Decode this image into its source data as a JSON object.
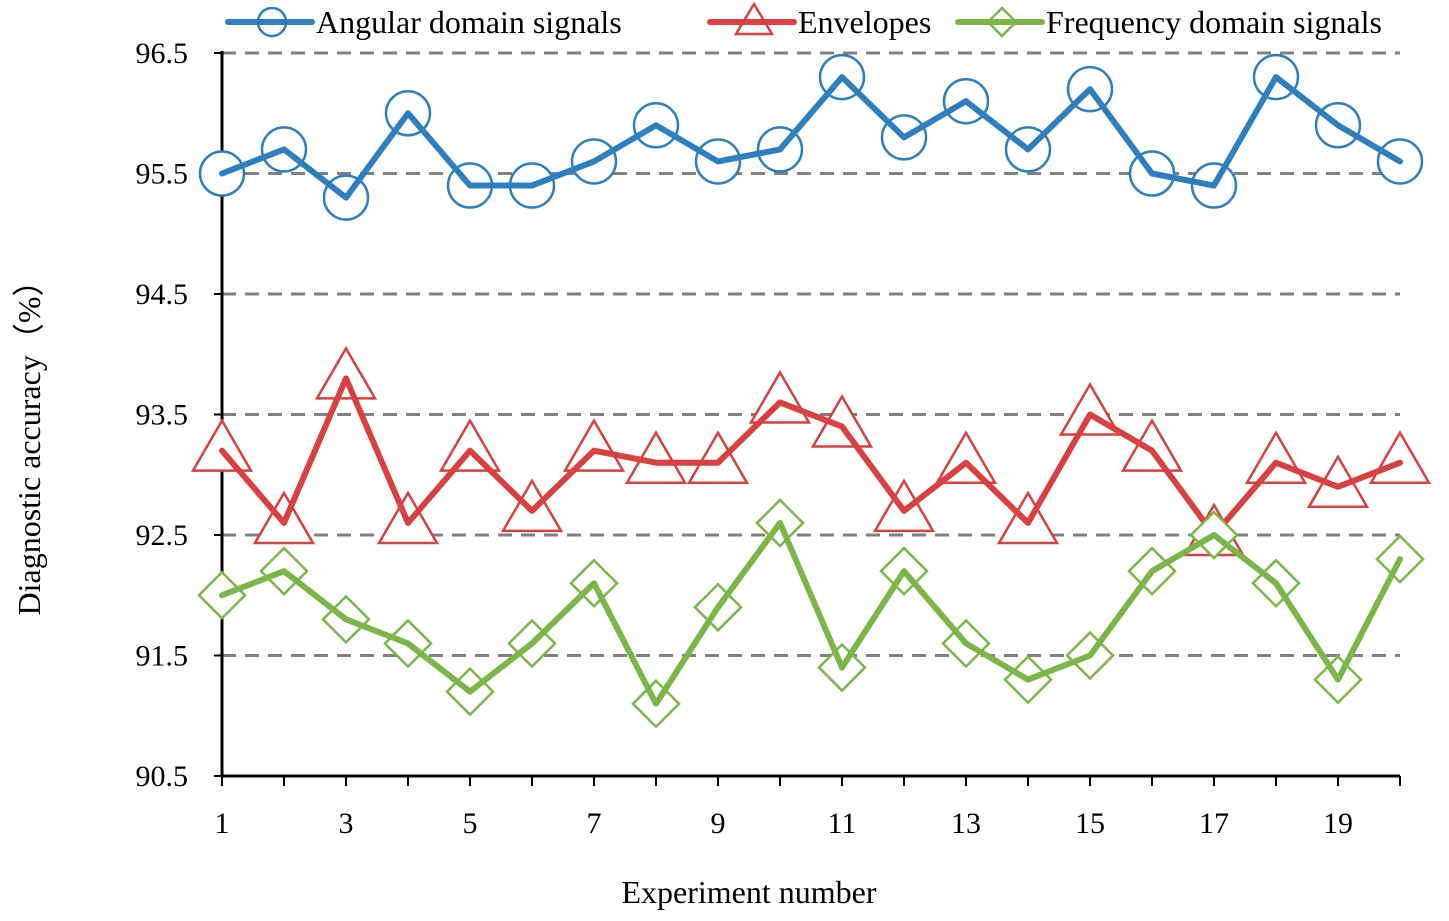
{
  "chart_data": {
    "type": "line",
    "title": "",
    "xlabel": "Experiment number",
    "ylabel": "Diagnostic accuracy（%）",
    "xlim": [
      1,
      20
    ],
    "ylim": [
      90.5,
      96.5
    ],
    "x": [
      1,
      2,
      3,
      4,
      5,
      6,
      7,
      8,
      9,
      10,
      11,
      12,
      13,
      14,
      15,
      16,
      17,
      18,
      19,
      20
    ],
    "x_tick_labels": [
      "1",
      "3",
      "5",
      "7",
      "9",
      "11",
      "13",
      "15",
      "17",
      "19"
    ],
    "y_tick_labels": [
      "90.5",
      "91.5",
      "92.5",
      "93.5",
      "94.5",
      "95.5",
      "96.5"
    ],
    "grid": "horizontal dashed",
    "legend_position": "top",
    "series": [
      {
        "name": "Angular domain signals",
        "color": "#2e7fbf",
        "marker": "circle",
        "values": [
          95.5,
          95.7,
          95.3,
          96.0,
          95.4,
          95.4,
          95.6,
          95.9,
          95.6,
          95.7,
          96.3,
          95.8,
          96.1,
          95.7,
          96.2,
          95.5,
          95.4,
          96.3,
          95.9,
          95.6
        ]
      },
      {
        "name": "Envelopes",
        "color": "#d94040",
        "marker": "triangle",
        "values": [
          93.2,
          92.6,
          93.8,
          92.6,
          93.2,
          92.7,
          93.2,
          93.1,
          93.1,
          93.6,
          93.4,
          92.7,
          93.1,
          92.6,
          93.5,
          93.2,
          92.5,
          93.1,
          92.9,
          93.1
        ]
      },
      {
        "name": "Frequency domain signals",
        "color": "#7ab648",
        "marker": "diamond",
        "values": [
          92.0,
          92.2,
          91.8,
          91.6,
          91.2,
          91.6,
          92.1,
          91.1,
          91.9,
          92.6,
          91.4,
          92.2,
          91.6,
          91.3,
          91.5,
          92.2,
          92.5,
          92.1,
          91.3,
          92.3
        ]
      }
    ]
  }
}
